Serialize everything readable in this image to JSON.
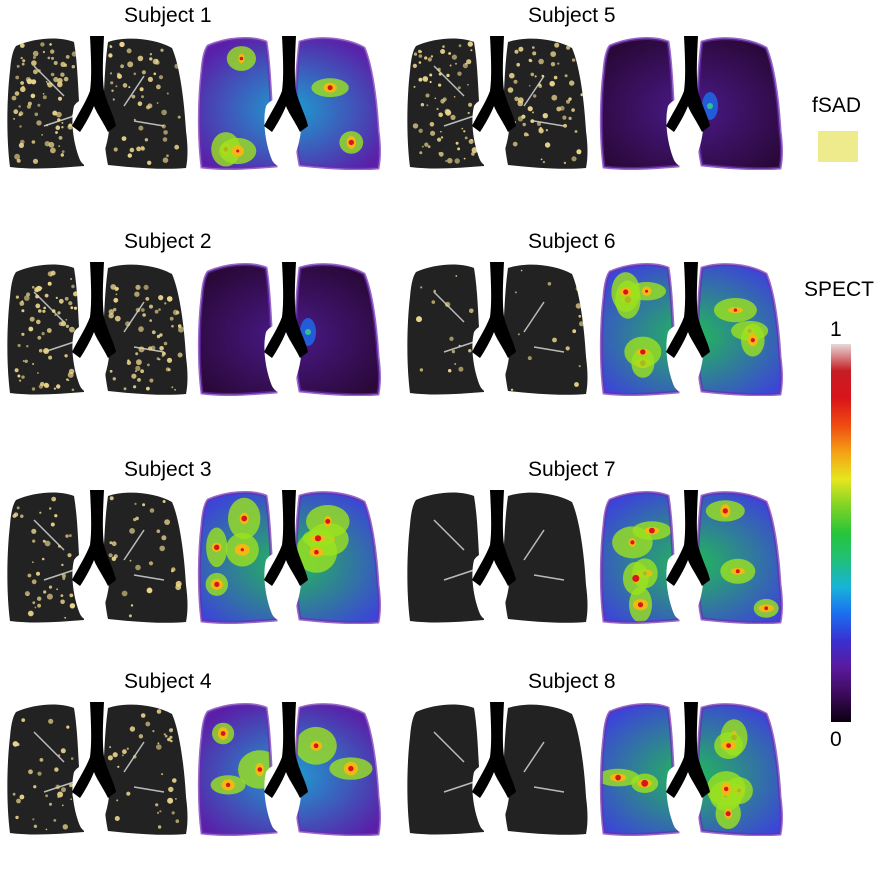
{
  "subjects": [
    {
      "label": "Subject 1",
      "ct_fsad": "high",
      "spect_level": "medium"
    },
    {
      "label": "Subject 2",
      "ct_fsad": "high",
      "spect_level": "low"
    },
    {
      "label": "Subject 3",
      "ct_fsad": "medium",
      "spect_level": "high"
    },
    {
      "label": "Subject 4",
      "ct_fsad": "medium",
      "spect_level": "medium"
    },
    {
      "label": "Subject 5",
      "ct_fsad": "high",
      "spect_level": "low"
    },
    {
      "label": "Subject 6",
      "ct_fsad": "low",
      "spect_level": "high"
    },
    {
      "label": "Subject 7",
      "ct_fsad": "none",
      "spect_level": "high"
    },
    {
      "label": "Subject 8",
      "ct_fsad": "none",
      "spect_level": "high"
    }
  ],
  "legend": {
    "fsad_label": "fSAD",
    "fsad_color": "#eeeb8c",
    "spect_label": "SPECT",
    "scale_max": "1",
    "scale_min": "0",
    "colormap": [
      "#0b0010",
      "#3b0a59",
      "#5a1a9c",
      "#3a2fd0",
      "#1b6ef0",
      "#17b3d9",
      "#20c07a",
      "#27c53a",
      "#7fd326",
      "#e6e61e",
      "#f5a014",
      "#ef4a12",
      "#d9141a",
      "#c41e24",
      "#e8d8d8"
    ]
  }
}
